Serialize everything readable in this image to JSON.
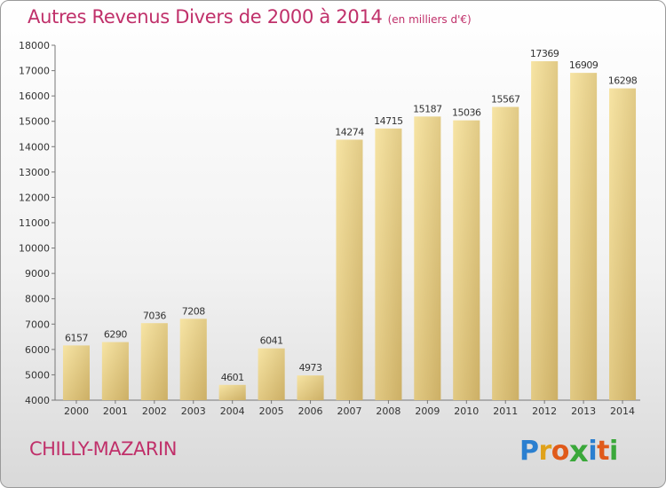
{
  "chart_data": {
    "type": "bar",
    "title": "Autres Revenus Divers de 2000 à 2014",
    "subtitle": "(en milliers d'€)",
    "categories": [
      "2000",
      "2001",
      "2002",
      "2003",
      "2004",
      "2005",
      "2006",
      "2007",
      "2008",
      "2009",
      "2010",
      "2011",
      "2012",
      "2013",
      "2014"
    ],
    "values": [
      6157,
      6290,
      7036,
      7208,
      4601,
      6041,
      4973,
      14274,
      14715,
      15187,
      15036,
      15567,
      17369,
      16909,
      16298
    ],
    "ylim": [
      4000,
      18000
    ],
    "yticks": [
      4000,
      5000,
      6000,
      7000,
      8000,
      9000,
      10000,
      11000,
      12000,
      13000,
      14000,
      15000,
      16000,
      17000,
      18000
    ],
    "grid": false,
    "xlabel": "",
    "ylabel": ""
  },
  "footer": {
    "place": "CHILLY-MAZARIN",
    "logo_letters": [
      "P",
      "r",
      "o",
      "x",
      "i",
      "t",
      "i"
    ],
    "logo_colors": [
      "#2a7fd0",
      "#e0a21a",
      "#e05a1a",
      "#3aa83a",
      "#2a7fd0",
      "#e05a1a",
      "#3aa83a"
    ]
  },
  "colors": {
    "title": "#c0306a",
    "bar_light": "#f6e2a0",
    "bar_dark": "#cfb36a"
  }
}
